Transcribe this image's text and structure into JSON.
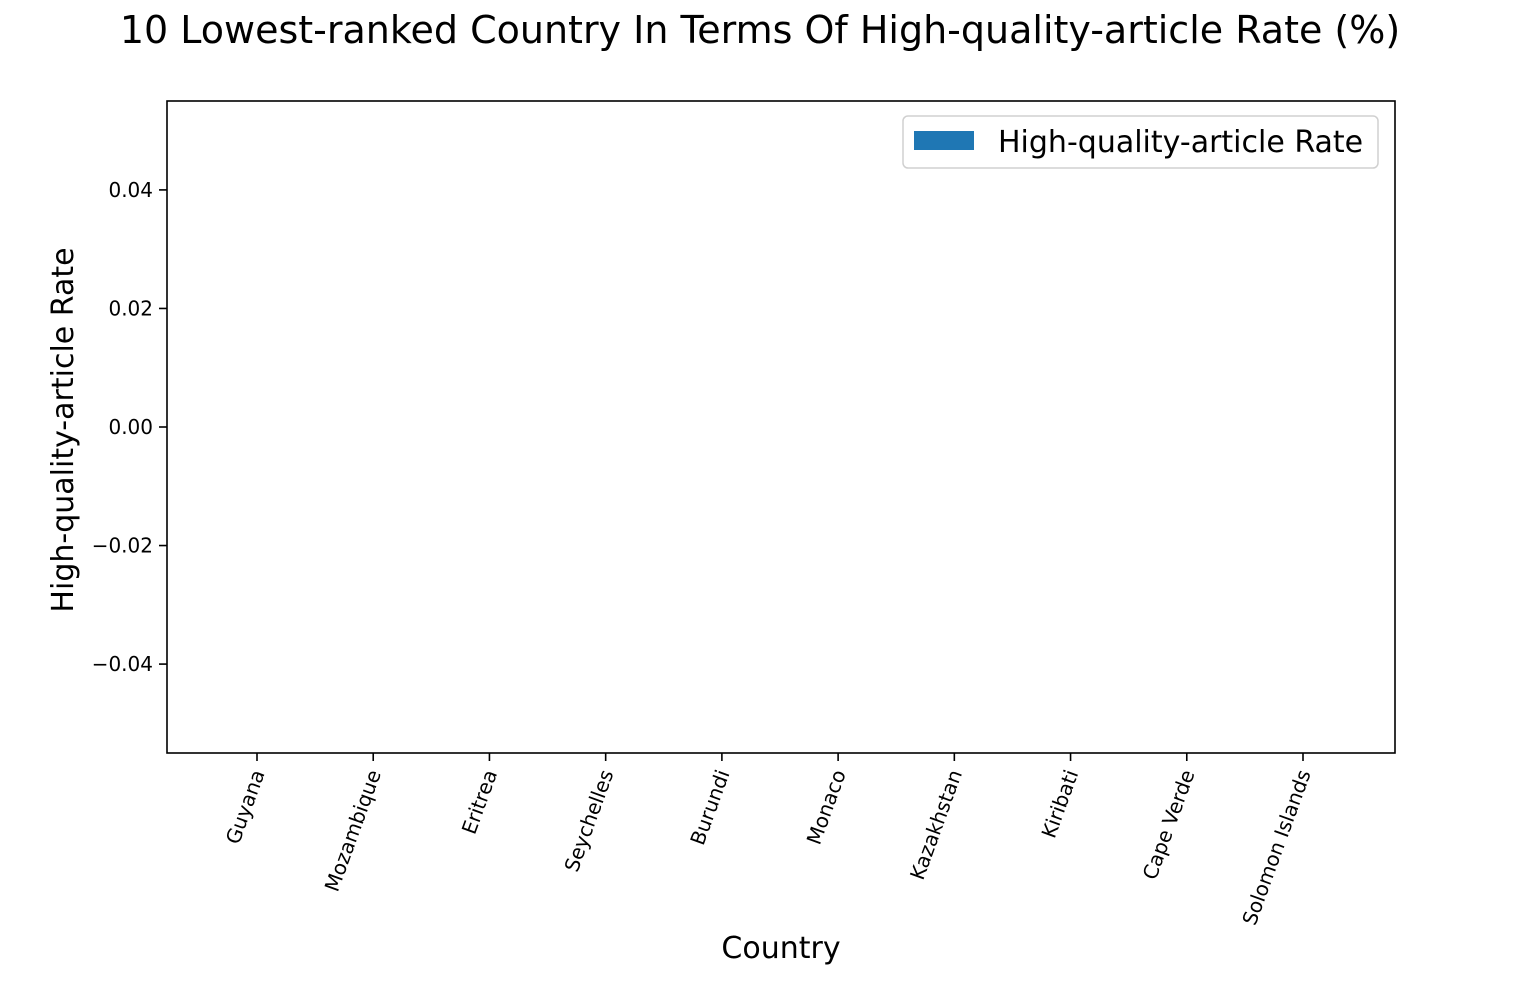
{
  "chart_data": {
    "type": "bar",
    "title": "10 Lowest-ranked Country In Terms Of High-quality-article Rate (%)",
    "xlabel": "Country",
    "ylabel": "High-quality-article Rate",
    "categories": [
      "Guyana",
      "Mozambique",
      "Eritrea",
      "Seychelles",
      "Burundi",
      "Monaco",
      "Kazakhstan",
      "Kiribati",
      "Cape Verde",
      "Solomon Islands"
    ],
    "series": [
      {
        "name": "High-quality-article Rate",
        "values": [
          0,
          0,
          0,
          0,
          0,
          0,
          0,
          0,
          0,
          0
        ],
        "color": "#1f77b4"
      }
    ],
    "ylim": [
      -0.055,
      0.055
    ],
    "yticks": [
      0.04,
      0.02,
      0.0,
      -0.02,
      -0.04
    ],
    "ytick_labels": [
      "0.04",
      "0.02",
      "0.00",
      "−0.02",
      "−0.04"
    ],
    "xtick_rotation_deg": 70,
    "legend": "top-right",
    "grid": false
  }
}
